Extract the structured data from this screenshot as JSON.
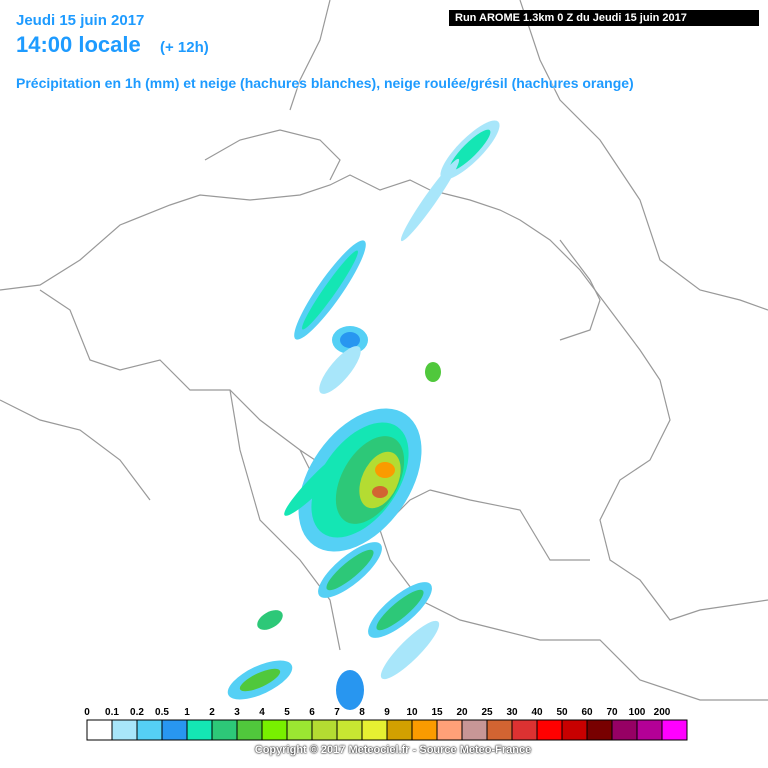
{
  "header": {
    "date": "Jeudi 15 juin 2017",
    "time": "14:00 locale",
    "offset": "(+ 12h)",
    "subtitle": "Précipitation en 1h (mm) et neige (hachures blanches), neige roulée/grésil (hachures orange)",
    "run": "Run AROME 1.3km 0 Z du Jeudi 15 juin 2017"
  },
  "legend": {
    "items": [
      {
        "label": "0",
        "color": "#ffffff"
      },
      {
        "label": "0.1",
        "color": "#a8e6fa"
      },
      {
        "label": "0.2",
        "color": "#55d0f5"
      },
      {
        "label": "0.5",
        "color": "#2896f0"
      },
      {
        "label": "1",
        "color": "#14e6b4"
      },
      {
        "label": "2",
        "color": "#2dc878"
      },
      {
        "label": "3",
        "color": "#50c83c"
      },
      {
        "label": "4",
        "color": "#78f000"
      },
      {
        "label": "5",
        "color": "#9be632"
      },
      {
        "label": "6",
        "color": "#b4dc32"
      },
      {
        "label": "7",
        "color": "#c8e632"
      },
      {
        "label": "8",
        "color": "#e6f032"
      },
      {
        "label": "9",
        "color": "#d2a000"
      },
      {
        "label": "10",
        "color": "#fa9b00"
      },
      {
        "label": "15",
        "color": "#ffa078"
      },
      {
        "label": "20",
        "color": "#c89696"
      },
      {
        "label": "25",
        "color": "#d26432"
      },
      {
        "label": "30",
        "color": "#dc3232"
      },
      {
        "label": "40",
        "color": "#ff0000"
      },
      {
        "label": "50",
        "color": "#c80000"
      },
      {
        "label": "60",
        "color": "#780000"
      },
      {
        "label": "70",
        "color": "#960064"
      },
      {
        "label": "100",
        "color": "#b40096"
      },
      {
        "label": "200",
        "color": "#ff00ff"
      }
    ]
  },
  "copyright": "Copyright © 2017 Meteociel.fr - Source Meteo-France"
}
